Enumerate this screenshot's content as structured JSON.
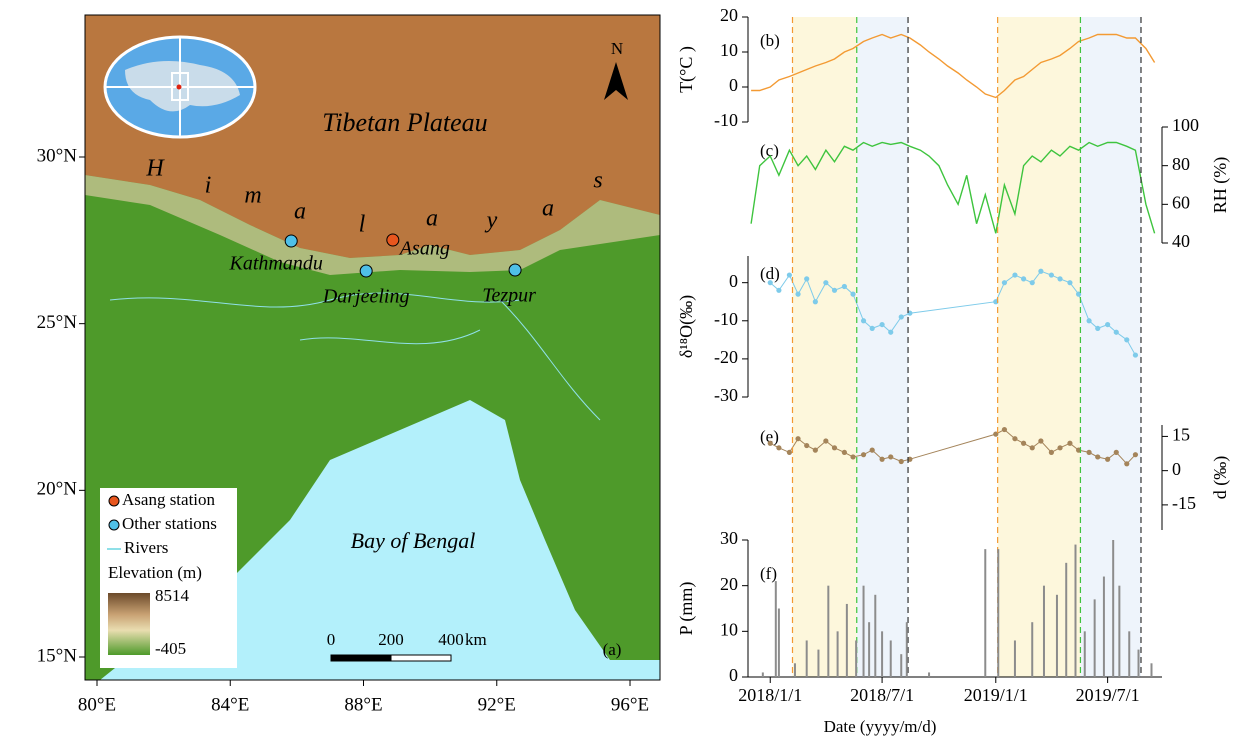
{
  "chart_data": [
    {
      "type": "map",
      "panel_label": "(a)",
      "title": "Tibetan  Plateau",
      "sea_label": "Bay of Bengal",
      "range_letters": [
        "H",
        "i",
        "m",
        "a",
        "l",
        "a",
        "y",
        "a",
        "s"
      ],
      "xlim": [
        79.64,
        96.9
      ],
      "ylim": [
        14.31,
        34.26
      ],
      "xticks": [
        {
          "value": 80,
          "label": "80°E"
        },
        {
          "value": 84,
          "label": "84°E"
        },
        {
          "value": 88,
          "label": "88°E"
        },
        {
          "value": 92,
          "label": "92°E"
        },
        {
          "value": 96,
          "label": "96°E"
        }
      ],
      "yticks": [
        {
          "value": 15,
          "label": "15°N"
        },
        {
          "value": 20,
          "label": "20°N"
        },
        {
          "value": 25,
          "label": "25°N"
        },
        {
          "value": 30,
          "label": "30°N"
        }
      ],
      "stations": [
        {
          "name": "Kathmandu",
          "lon": 85.83,
          "lat": 27.48,
          "color": "#4fc0e8"
        },
        {
          "name": "Asang",
          "lon": 88.88,
          "lat": 27.51,
          "color": "#e8561e"
        },
        {
          "name": "Darjeeling",
          "lon": 88.08,
          "lat": 26.58,
          "color": "#4fc0e8"
        },
        {
          "name": "Tezpur",
          "lon": 92.55,
          "lat": 26.61,
          "color": "#4fc0e8"
        }
      ],
      "legend": [
        "Asang station",
        "Other stations",
        "Rivers"
      ],
      "elevation_title": "Elevation (m)",
      "elevation_range": [
        -405,
        8514
      ],
      "scale_bar": {
        "ticks": [
          0,
          200,
          400
        ],
        "unit": "km"
      },
      "north": "N"
    },
    {
      "type": "line",
      "panel_label": "(b)",
      "ylabel": "T(°C )",
      "color": "#f39a33",
      "xlim": [
        "2017/11/26",
        "2019/9/27"
      ],
      "ylim": [
        -10,
        20
      ],
      "yticks": [
        -10,
        0,
        10,
        20
      ],
      "x": [
        "2017/12/1",
        "2017/12/15",
        "2018/1/1",
        "2018/1/15",
        "2018/2/1",
        "2018/2/15",
        "2018/3/1",
        "2018/3/15",
        "2018/4/1",
        "2018/4/15",
        "2018/5/1",
        "2018/5/15",
        "2018/6/1",
        "2018/6/15",
        "2018/7/1",
        "2018/7/15",
        "2018/8/1",
        "2018/8/15",
        "2018/9/1",
        "2018/9/15",
        "2018/10/1",
        "2018/10/15",
        "2018/11/1",
        "2018/11/15",
        "2018/12/1",
        "2018/12/15",
        "2019/1/1",
        "2019/1/15",
        "2019/2/1",
        "2019/2/15",
        "2019/3/1",
        "2019/3/15",
        "2019/4/1",
        "2019/4/15",
        "2019/5/1",
        "2019/5/15",
        "2019/6/1",
        "2019/6/15",
        "2019/7/1",
        "2019/7/15",
        "2019/8/1",
        "2019/8/15",
        "2019/9/1",
        "2019/9/15"
      ],
      "values": [
        -1,
        -1,
        0,
        2,
        3,
        4,
        5,
        6,
        7,
        8,
        10,
        11,
        13,
        14,
        15,
        14,
        15,
        14,
        12,
        10,
        8,
        6,
        4,
        2,
        0,
        -2,
        -3,
        -1,
        2,
        3,
        5,
        7,
        8,
        9,
        11,
        13,
        14,
        15,
        15,
        15,
        14,
        14,
        11,
        7
      ]
    },
    {
      "type": "line",
      "panel_label": "(c)",
      "ylabel": "RH (%)",
      "color": "#3ec43e",
      "xlim": [
        "2017/11/26",
        "2019/9/27"
      ],
      "ylim": [
        40,
        100
      ],
      "yticks": [
        40,
        60,
        80,
        100
      ],
      "x": [
        "2017/12/1",
        "2017/12/15",
        "2018/1/1",
        "2018/1/15",
        "2018/2/1",
        "2018/2/15",
        "2018/3/1",
        "2018/3/15",
        "2018/4/1",
        "2018/4/15",
        "2018/5/1",
        "2018/5/15",
        "2018/6/1",
        "2018/6/15",
        "2018/7/1",
        "2018/7/15",
        "2018/8/1",
        "2018/8/15",
        "2018/9/1",
        "2018/9/15",
        "2018/10/1",
        "2018/10/15",
        "2018/11/1",
        "2018/11/15",
        "2018/12/1",
        "2018/12/15",
        "2019/1/1",
        "2019/1/15",
        "2019/2/1",
        "2019/2/15",
        "2019/3/1",
        "2019/3/15",
        "2019/4/1",
        "2019/4/15",
        "2019/5/1",
        "2019/5/15",
        "2019/6/1",
        "2019/6/15",
        "2019/7/1",
        "2019/7/15",
        "2019/8/1",
        "2019/8/15",
        "2019/9/1",
        "2019/9/15"
      ],
      "values": [
        50,
        80,
        85,
        75,
        88,
        80,
        85,
        78,
        88,
        82,
        90,
        88,
        92,
        90,
        92,
        91,
        92,
        90,
        88,
        85,
        80,
        70,
        60,
        75,
        50,
        65,
        45,
        70,
        55,
        80,
        85,
        82,
        88,
        85,
        90,
        88,
        92,
        90,
        92,
        92,
        90,
        88,
        60,
        45
      ]
    },
    {
      "type": "line",
      "markers": true,
      "panel_label": "(d)",
      "ylabel": "δ¹⁸O(‰)",
      "color": "#7ecbea",
      "xlim": [
        "2017/11/26",
        "2019/9/27"
      ],
      "ylim": [
        -30,
        7
      ],
      "yticks": [
        -30,
        -20,
        -10,
        0
      ],
      "x": [
        "2018/1/1",
        "2018/1/15",
        "2018/2/1",
        "2018/2/15",
        "2018/3/1",
        "2018/3/15",
        "2018/4/1",
        "2018/4/15",
        "2018/5/1",
        "2018/5/15",
        "2018/6/1",
        "2018/6/15",
        "2018/7/1",
        "2018/7/15",
        "2018/8/1",
        "2018/8/15",
        "2019/1/1",
        "2019/1/15",
        "2019/2/1",
        "2019/2/15",
        "2019/3/1",
        "2019/3/15",
        "2019/4/1",
        "2019/4/15",
        "2019/5/1",
        "2019/5/15",
        "2019/6/1",
        "2019/6/15",
        "2019/7/1",
        "2019/7/15",
        "2019/8/1",
        "2019/8/15"
      ],
      "values": [
        0,
        -2,
        2,
        -3,
        1,
        -5,
        0,
        -2,
        -1,
        -3,
        -10,
        -12,
        -11,
        -13,
        -9,
        -8,
        -5,
        0,
        2,
        1,
        0,
        3,
        2,
        1,
        0,
        -3,
        -10,
        -12,
        -11,
        -13,
        -15,
        -19
      ]
    },
    {
      "type": "line",
      "markers": true,
      "panel_label": "(e)",
      "ylabel": "d (‰)",
      "color": "#a4845a",
      "xlim": [
        "2017/11/26",
        "2019/9/27"
      ],
      "ylim": [
        -26,
        20
      ],
      "yticks": [
        -15,
        0,
        15
      ],
      "x": [
        "2018/1/1",
        "2018/1/15",
        "2018/2/1",
        "2018/2/15",
        "2018/3/1",
        "2018/3/15",
        "2018/4/1",
        "2018/4/15",
        "2018/5/1",
        "2018/5/15",
        "2018/6/1",
        "2018/6/15",
        "2018/7/1",
        "2018/7/15",
        "2018/8/1",
        "2018/8/15",
        "2019/1/1",
        "2019/1/15",
        "2019/2/1",
        "2019/2/15",
        "2019/3/1",
        "2019/3/15",
        "2019/4/1",
        "2019/4/15",
        "2019/5/1",
        "2019/5/15",
        "2019/6/1",
        "2019/6/15",
        "2019/7/1",
        "2019/7/15",
        "2019/8/1",
        "2019/8/15"
      ],
      "values": [
        12,
        10,
        8,
        14,
        11,
        9,
        13,
        10,
        8,
        6,
        7,
        9,
        5,
        6,
        4,
        5,
        16,
        18,
        14,
        12,
        10,
        13,
        8,
        10,
        12,
        9,
        8,
        6,
        5,
        8,
        3,
        7
      ]
    },
    {
      "type": "bar",
      "panel_label": "(f)",
      "ylabel": "P (mm)",
      "color": "#8c8c8c",
      "xlabel": "Date (yyyy/m/d)",
      "xlim": [
        "2017/11/26",
        "2019/9/27"
      ],
      "ylim": [
        0,
        30
      ],
      "yticks": [
        0,
        10,
        20,
        30
      ],
      "xticks": [
        "2018/1/1",
        "2018/7/1",
        "2019/1/1",
        "2019/7/1"
      ],
      "x": [
        "2017/12/20",
        "2018/1/10",
        "2018/1/15",
        "2018/2/10",
        "2018/3/1",
        "2018/3/20",
        "2018/4/5",
        "2018/4/20",
        "2018/5/5",
        "2018/5/20",
        "2018/6/1",
        "2018/6/10",
        "2018/6/20",
        "2018/7/1",
        "2018/7/15",
        "2018/8/1",
        "2018/8/10",
        "2018/9/15",
        "2018/12/15",
        "2019/1/5",
        "2019/2/1",
        "2019/3/1",
        "2019/3/20",
        "2019/4/10",
        "2019/4/25",
        "2019/5/10",
        "2019/5/25",
        "2019/6/10",
        "2019/6/25",
        "2019/7/10",
        "2019/7/20",
        "2019/8/5",
        "2019/8/20",
        "2019/9/10"
      ],
      "values": [
        1,
        21,
        15,
        3,
        8,
        6,
        20,
        10,
        16,
        8,
        20,
        12,
        18,
        10,
        8,
        5,
        12,
        1,
        28,
        28,
        8,
        12,
        20,
        18,
        25,
        29,
        10,
        17,
        22,
        30,
        20,
        10,
        6,
        3
      ],
      "periods": [
        {
          "start": "2018/2/6",
          "end": "2018/5/21",
          "fill": "#fdf7dc"
        },
        {
          "start": "2018/5/21",
          "end": "2018/8/12",
          "fill": "#eef4fb"
        },
        {
          "start": "2019/1/4",
          "end": "2019/5/18",
          "fill": "#fdf7dc"
        },
        {
          "start": "2019/5/18",
          "end": "2019/8/24",
          "fill": "#eef4fb"
        }
      ],
      "boundary_lines": [
        {
          "x": "2018/2/6",
          "color": "#f39a33"
        },
        {
          "x": "2018/5/21",
          "color": "#3ec43e"
        },
        {
          "x": "2018/8/12",
          "color": "#333333"
        },
        {
          "x": "2019/1/4",
          "color": "#f39a33"
        },
        {
          "x": "2019/5/18",
          "color": "#3ec43e"
        },
        {
          "x": "2019/8/24",
          "color": "#333333"
        }
      ]
    }
  ]
}
